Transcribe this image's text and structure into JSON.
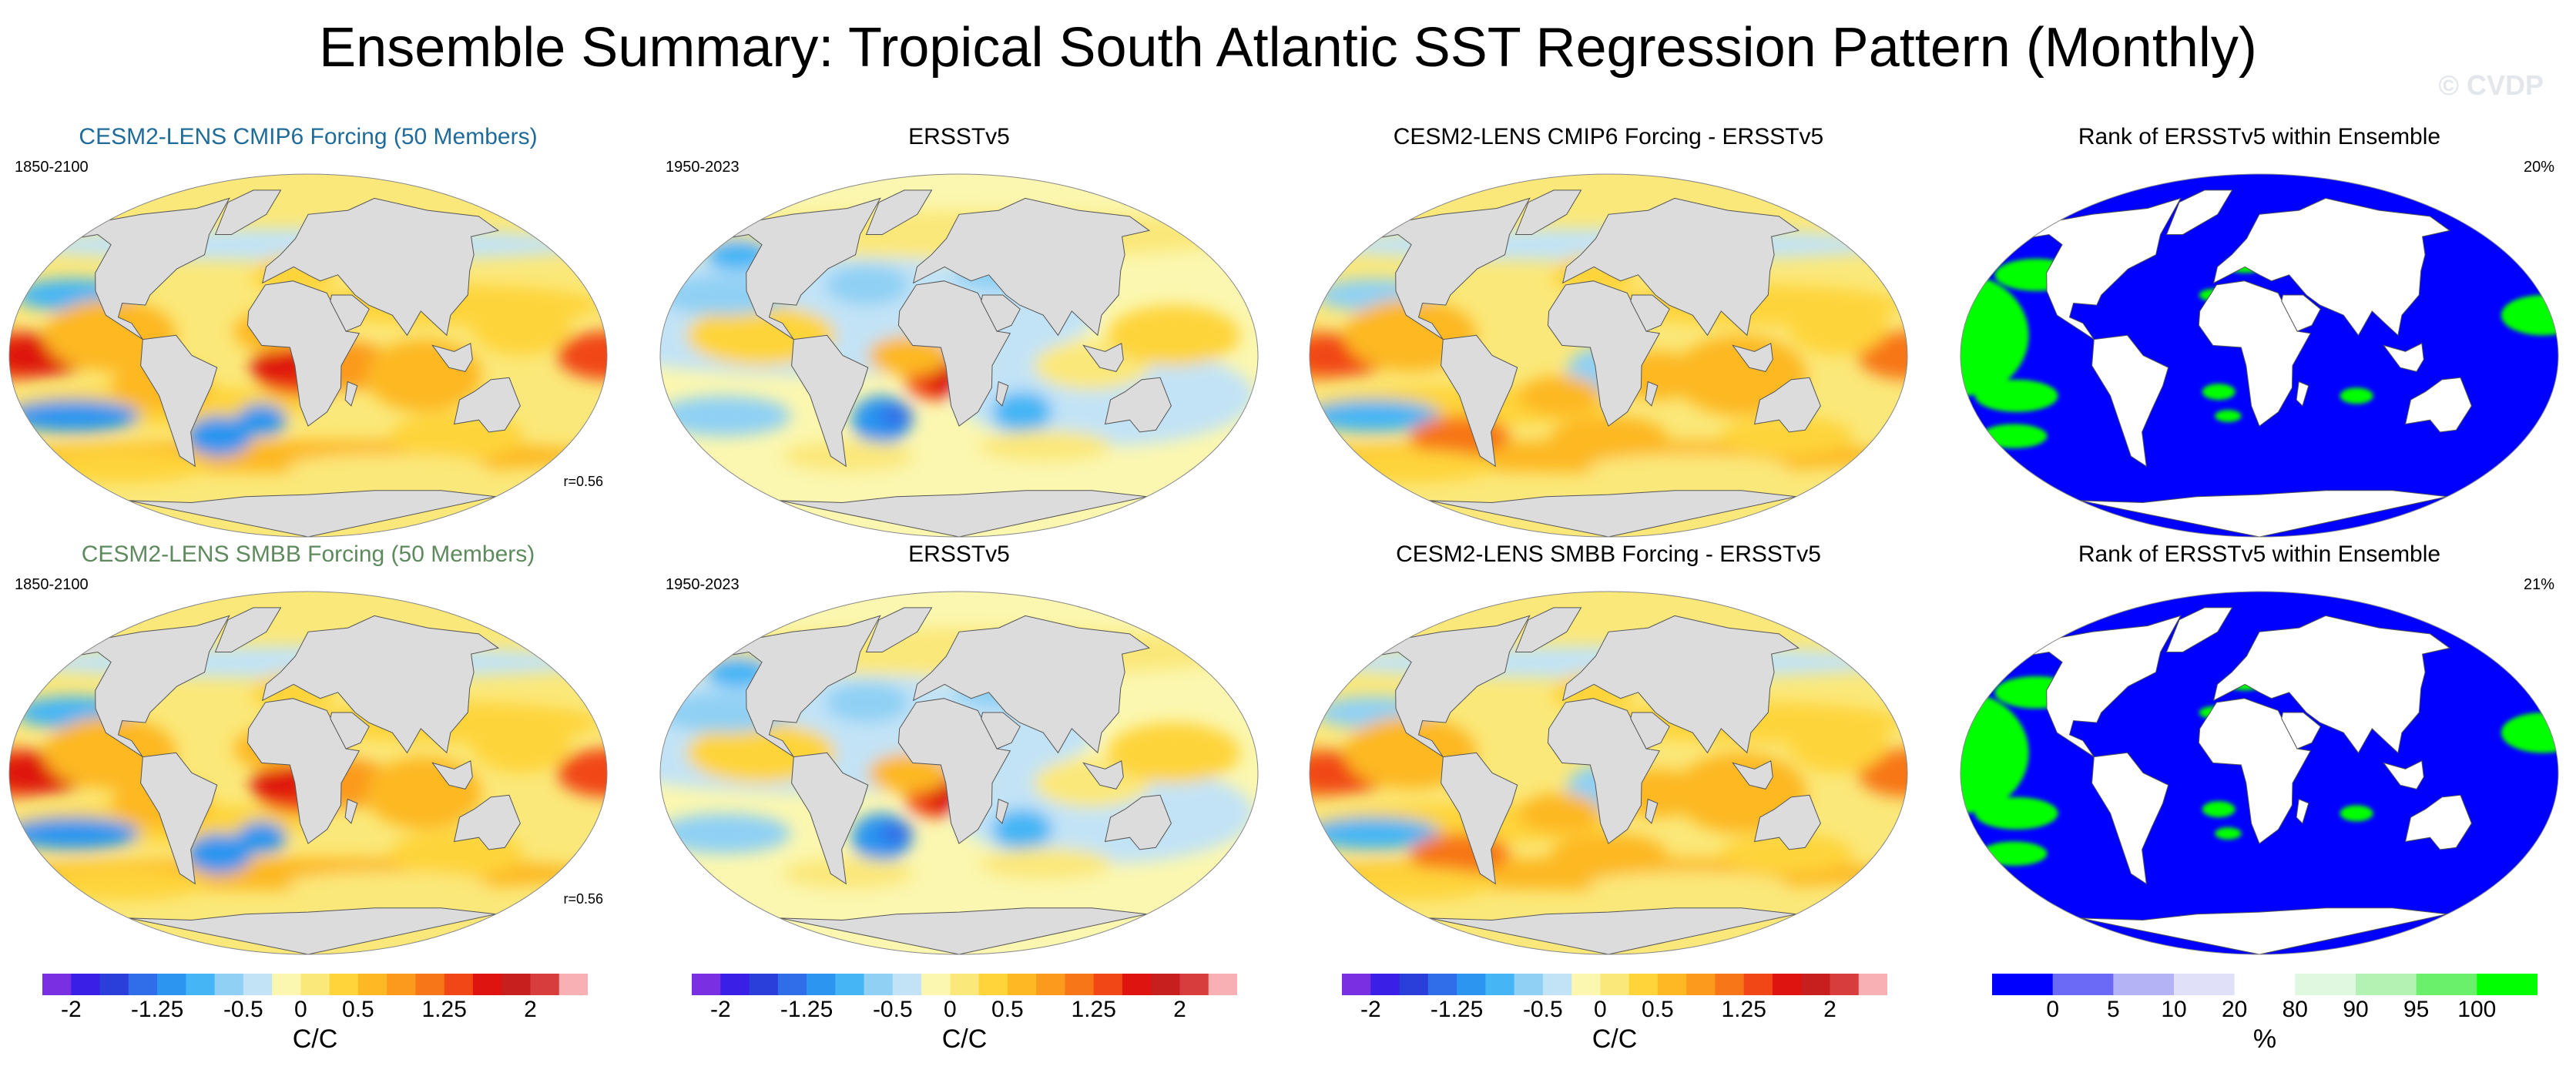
{
  "title": "Ensemble Summary: Tropical South Atlantic SST Regression Pattern (Monthly)",
  "watermark": "© CVDP",
  "colors": {
    "land": "#dcdcdc",
    "coast": "#555555",
    "title_cmip6": "#1f6b9a",
    "title_smbb": "#5e8a5e",
    "regression_scale": [
      "#7b2fe3",
      "#3a1fe6",
      "#2a3fd9",
      "#2f6ee8",
      "#2b95f0",
      "#45b5f5",
      "#8fd0f4",
      "#c2e3f6",
      "#fbf7b0",
      "#fbe87a",
      "#fed43a",
      "#fdb824",
      "#fb9a1c",
      "#f77618",
      "#f14716",
      "#de1410",
      "#c71e1e",
      "#d73d3d",
      "#f9b0b4"
    ],
    "rank_scale": [
      "#0000ff",
      "#6a6af6",
      "#b3b3f6",
      "#e0e0f8",
      "#ffffff",
      "#e0f8e0",
      "#b3f2b3",
      "#6af06a",
      "#00ff00"
    ]
  },
  "panels": [
    {
      "title": "CESM2-LENS CMIP6 Forcing (50 Members)",
      "period": "1850-2100",
      "corr": "r=0.56",
      "kind": "model"
    },
    {
      "title": "ERSSTv5",
      "period": "1950-2023",
      "kind": "obs"
    },
    {
      "title": "CESM2-LENS CMIP6 Forcing - ERSSTv5",
      "kind": "diff"
    },
    {
      "title": "Rank of ERSSTv5 within Ensemble",
      "rank": "20%",
      "kind": "rank"
    },
    {
      "title": "CESM2-LENS SMBB Forcing (50 Members)",
      "period": "1850-2100",
      "corr": "r=0.56",
      "kind": "model"
    },
    {
      "title": "ERSSTv5",
      "period": "1950-2023",
      "kind": "obs"
    },
    {
      "title": "CESM2-LENS SMBB Forcing - ERSSTv5",
      "kind": "diff"
    },
    {
      "title": "Rank of ERSSTv5 within Ensemble",
      "rank": "21%",
      "kind": "rank"
    }
  ],
  "colorbars": [
    {
      "labels": [
        "-2",
        "-1.25",
        "-0.5",
        "0",
        "0.5",
        "1.25",
        "2"
      ],
      "units": "C/C",
      "kind": "regression"
    },
    {
      "labels": [
        "-2",
        "-1.25",
        "-0.5",
        "0",
        "0.5",
        "1.25",
        "2"
      ],
      "units": "C/C",
      "kind": "regression"
    },
    {
      "labels": [
        "-2",
        "-1.25",
        "-0.5",
        "0",
        "0.5",
        "1.25",
        "2"
      ],
      "units": "C/C",
      "kind": "regression"
    },
    {
      "labels": [
        "0",
        "5",
        "10",
        "20",
        "80",
        "90",
        "95",
        "100"
      ],
      "units": "%",
      "kind": "rank"
    }
  ]
}
